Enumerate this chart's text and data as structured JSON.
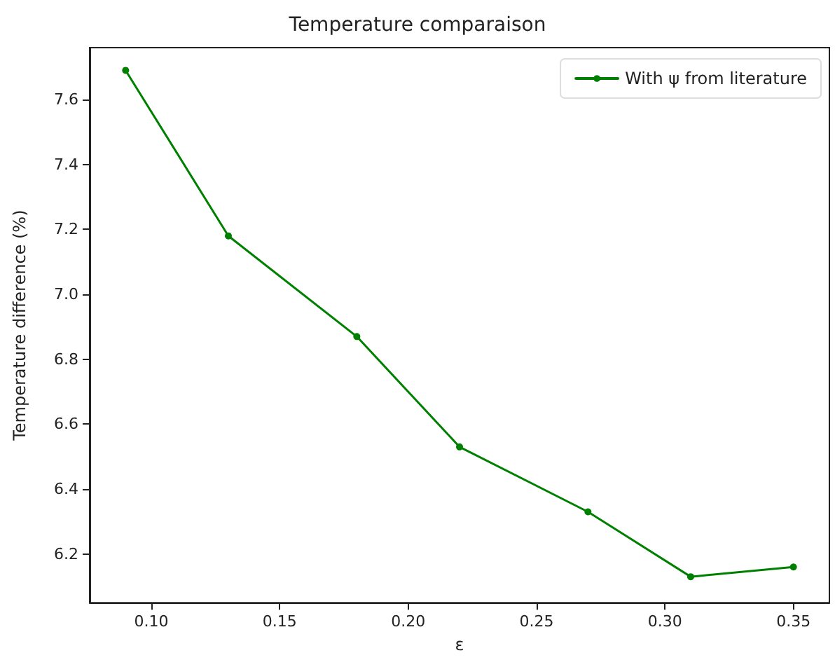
{
  "chart_data": {
    "type": "line",
    "title": "Temperature comparaison",
    "xlabel": "ε",
    "ylabel": "Temperature difference (%)",
    "x": [
      0.09,
      0.13,
      0.18,
      0.22,
      0.27,
      0.31,
      0.35
    ],
    "series": [
      {
        "name": "With ψ from literature",
        "color": "#008000",
        "values": [
          7.69,
          7.18,
          6.87,
          6.53,
          6.33,
          6.13,
          6.16
        ]
      }
    ],
    "xlim": [
      0.076,
      0.364
    ],
    "xticks": [
      {
        "value": 0.1,
        "label": "0.10"
      },
      0.15,
      {
        "value": 0.2,
        "label": "0.20"
      },
      0.25,
      {
        "value": 0.3,
        "label": "0.30"
      },
      0.35
    ],
    "ylim": [
      6.05,
      7.76
    ],
    "yticks": [
      6.2,
      6.4,
      6.6,
      6.8,
      {
        "value": 7,
        "label": "7.0"
      },
      7.2,
      7.4,
      7.6
    ],
    "grid": false,
    "legend": "top right",
    "marker": "circle",
    "line_style": "solid"
  }
}
